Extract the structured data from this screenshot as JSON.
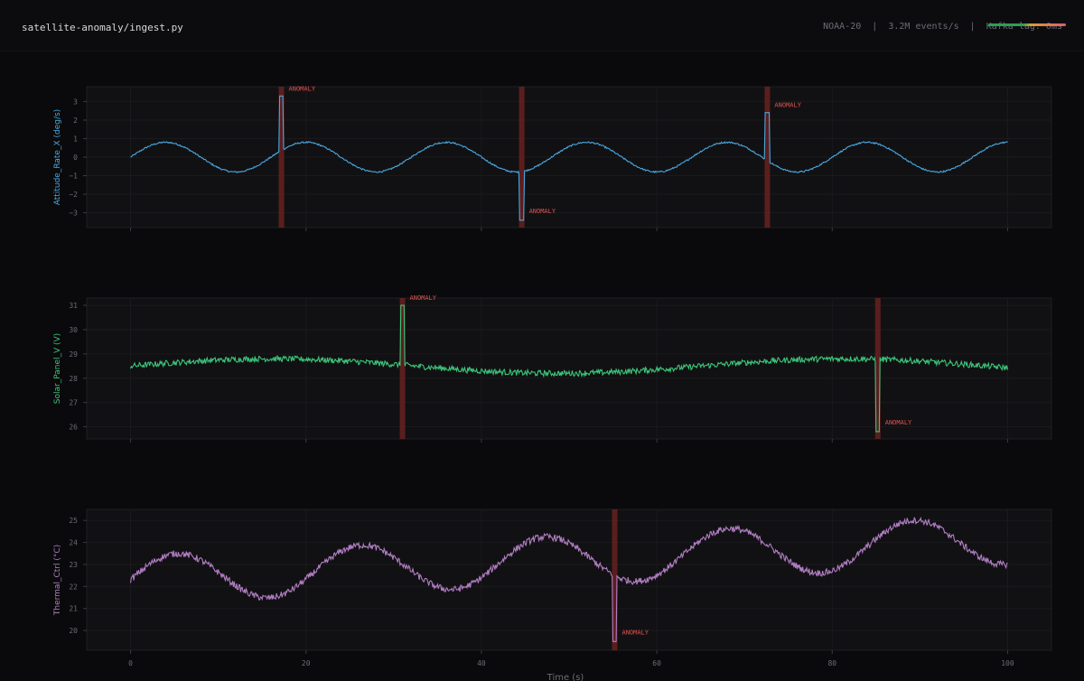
{
  "header": {
    "title": "satellite-anomaly/ingest.py",
    "status": "NOAA-20  |  3.2M events/s  |  Kafka lag: 0ms"
  },
  "chart_data": [
    {
      "type": "line",
      "ylabel": "Attitude_Rate_X (deg/s)",
      "color": "#4aa8e0",
      "xlim": [
        -5,
        105
      ],
      "ylim": [
        -3.8,
        3.8
      ],
      "yticks": [
        -3,
        -2,
        -1,
        0,
        1,
        2,
        3
      ],
      "yticklabels": [
        "−3",
        "−2",
        "−1",
        "0",
        "1",
        "2",
        "3"
      ],
      "xticks": [
        0,
        20,
        40,
        60,
        80,
        100
      ],
      "xticklabels": [
        "",
        "",
        "",
        "",
        "",
        ""
      ],
      "xlabel": "",
      "base": {
        "offset": 0,
        "amplitude": 0.8,
        "period": 16,
        "phase": 0,
        "trend": 0,
        "noise": 0.04
      },
      "anomalies": [
        {
          "x": 17.2,
          "value": 3.3,
          "label": "ANOMALY"
        },
        {
          "x": 44.6,
          "value": -3.4,
          "label": "ANOMALY"
        },
        {
          "x": 72.6,
          "value": 2.4,
          "label": "ANOMALY"
        }
      ]
    },
    {
      "type": "line",
      "ylabel": "Solar_Panel_V (V)",
      "color": "#3cc57a",
      "xlim": [
        -5,
        105
      ],
      "ylim": [
        25.5,
        31.3
      ],
      "yticks": [
        26,
        27,
        28,
        29,
        30,
        31
      ],
      "yticklabels": [
        "26",
        "27",
        "28",
        "29",
        "30",
        "31"
      ],
      "xticks": [
        0,
        20,
        40,
        60,
        80,
        100
      ],
      "xticklabels": [
        "",
        "",
        "",
        "",
        "",
        ""
      ],
      "xlabel": "",
      "base": {
        "offset": 28.5,
        "amplitude": 0.3,
        "period": 65,
        "phase": 0,
        "trend": 0,
        "noise": 0.12
      },
      "anomalies": [
        {
          "x": 31,
          "value": 31.0,
          "label": "ANOMALY"
        },
        {
          "x": 85.2,
          "value": 25.8,
          "label": "ANOMALY"
        }
      ]
    },
    {
      "type": "line",
      "ylabel": "Thermal_Ctrl (°C)",
      "color": "#b27ec4",
      "xlim": [
        -5,
        105
      ],
      "ylim": [
        19.1,
        25.5
      ],
      "yticks": [
        20,
        21,
        22,
        23,
        24,
        25
      ],
      "yticklabels": [
        "20",
        "21",
        "22",
        "23",
        "24",
        "25"
      ],
      "xticks": [
        0,
        20,
        40,
        60,
        80,
        100
      ],
      "xticklabels": [
        "0",
        "20",
        "40",
        "60",
        "80",
        "100"
      ],
      "xlabel": "Time (s)",
      "base": {
        "offset": 22.3,
        "amplitude": 1.1,
        "period": 21,
        "phase": 0,
        "trend": 0.018,
        "noise": 0.15
      },
      "anomalies": [
        {
          "x": 55.2,
          "value": 19.5,
          "label": "ANOMALY"
        }
      ]
    }
  ]
}
